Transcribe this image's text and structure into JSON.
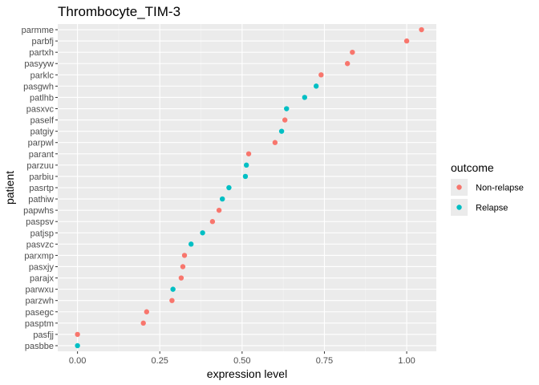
{
  "chart_data": {
    "type": "scatter",
    "title": "Thrombocyte_TIM-3",
    "xlabel": "expression level",
    "ylabel": "patient",
    "xlim": [
      -0.06,
      1.09
    ],
    "xticks": [
      0.0,
      0.25,
      0.5,
      0.75,
      1.0
    ],
    "xtick_labels": [
      "0.00",
      "0.25",
      "0.50",
      "0.75",
      "1.00"
    ],
    "grid": true,
    "legend": {
      "title": "outcome",
      "placement": "right",
      "entries": [
        {
          "label": "Non-relapse",
          "color": "#F8766D"
        },
        {
          "label": "Relapse",
          "color": "#00BFC4"
        }
      ]
    },
    "points": [
      {
        "patient": "parmme",
        "value": 1.045,
        "outcome": "Non-relapse"
      },
      {
        "patient": "parbfj",
        "value": 1.0,
        "outcome": "Non-relapse"
      },
      {
        "patient": "partxh",
        "value": 0.835,
        "outcome": "Non-relapse"
      },
      {
        "patient": "pasyyw",
        "value": 0.82,
        "outcome": "Non-relapse"
      },
      {
        "patient": "parklc",
        "value": 0.74,
        "outcome": "Non-relapse"
      },
      {
        "patient": "pasgwh",
        "value": 0.725,
        "outcome": "Relapse"
      },
      {
        "patient": "patlhb",
        "value": 0.69,
        "outcome": "Relapse"
      },
      {
        "patient": "pasxvc",
        "value": 0.635,
        "outcome": "Relapse"
      },
      {
        "patient": "paself",
        "value": 0.63,
        "outcome": "Non-relapse"
      },
      {
        "patient": "patgiy",
        "value": 0.62,
        "outcome": "Relapse"
      },
      {
        "patient": "parpwl",
        "value": 0.6,
        "outcome": "Non-relapse"
      },
      {
        "patient": "parant",
        "value": 0.52,
        "outcome": "Non-relapse"
      },
      {
        "patient": "parzuu",
        "value": 0.513,
        "outcome": "Relapse"
      },
      {
        "patient": "parbiu",
        "value": 0.51,
        "outcome": "Relapse"
      },
      {
        "patient": "pasrtp",
        "value": 0.46,
        "outcome": "Relapse"
      },
      {
        "patient": "pathiw",
        "value": 0.44,
        "outcome": "Relapse"
      },
      {
        "patient": "papwhs",
        "value": 0.43,
        "outcome": "Non-relapse"
      },
      {
        "patient": "paspsv",
        "value": 0.41,
        "outcome": "Non-relapse"
      },
      {
        "patient": "patjsp",
        "value": 0.38,
        "outcome": "Relapse"
      },
      {
        "patient": "pasvzc",
        "value": 0.345,
        "outcome": "Relapse"
      },
      {
        "patient": "parxmp",
        "value": 0.325,
        "outcome": "Non-relapse"
      },
      {
        "patient": "pasxjy",
        "value": 0.32,
        "outcome": "Non-relapse"
      },
      {
        "patient": "parajx",
        "value": 0.315,
        "outcome": "Non-relapse"
      },
      {
        "patient": "parwxu",
        "value": 0.29,
        "outcome": "Relapse"
      },
      {
        "patient": "parzwh",
        "value": 0.287,
        "outcome": "Non-relapse"
      },
      {
        "patient": "pasegc",
        "value": 0.21,
        "outcome": "Non-relapse"
      },
      {
        "patient": "pasptm",
        "value": 0.2,
        "outcome": "Non-relapse"
      },
      {
        "patient": "pasfjj",
        "value": 0.0,
        "outcome": "Non-relapse"
      },
      {
        "patient": "pasbbe",
        "value": 0.0,
        "outcome": "Relapse"
      }
    ]
  }
}
